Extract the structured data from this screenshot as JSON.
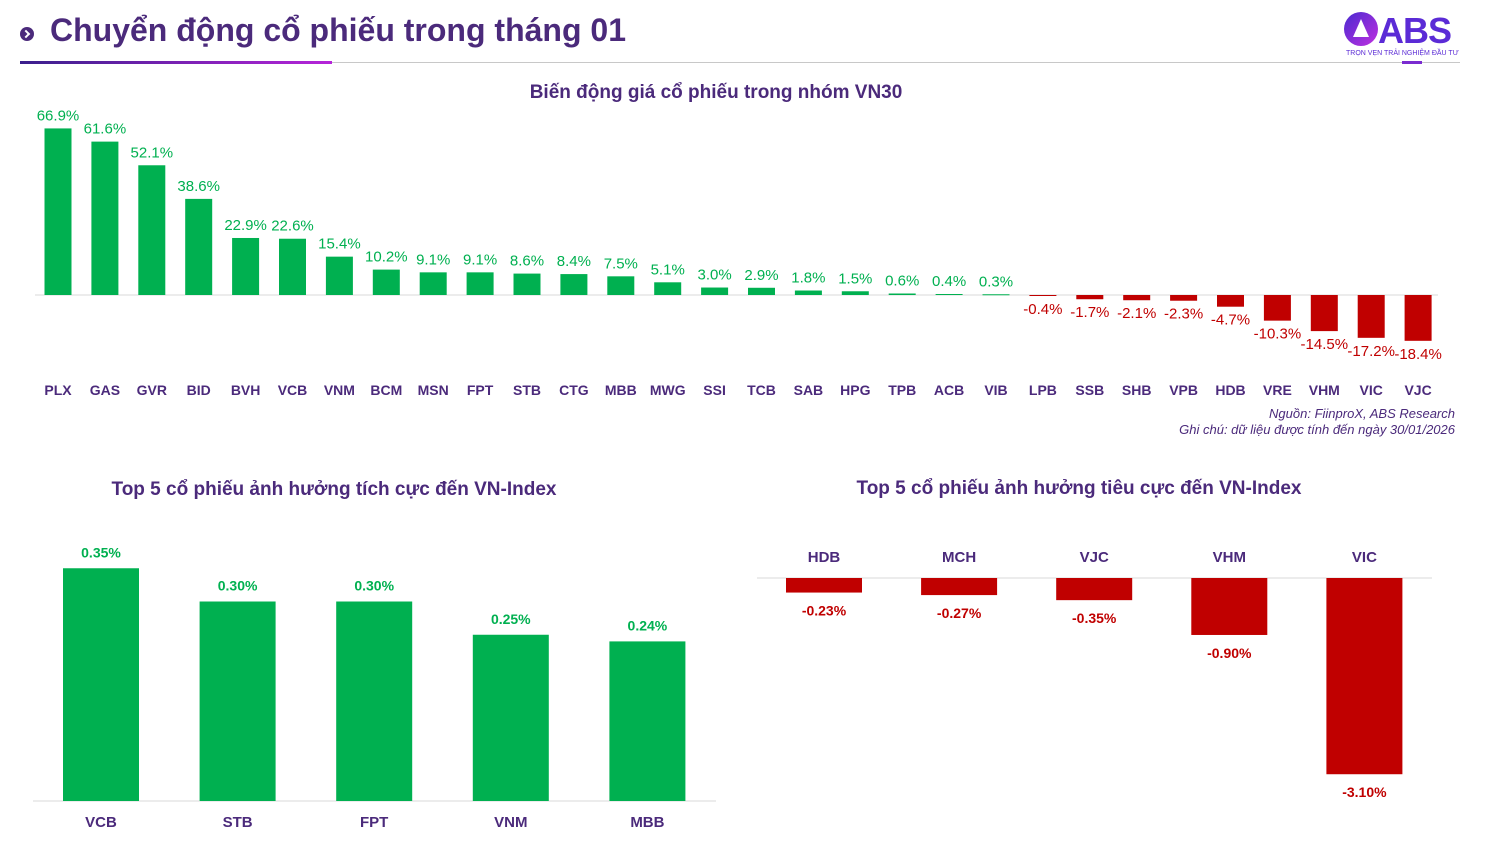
{
  "header": {
    "title": "Chuyển động cổ phiếu trong tháng 01",
    "logo_text": "ABS",
    "logo_tagline": "TRỌN VẸN TRẢI NGHIỆM ĐẦU TƯ"
  },
  "colors": {
    "positive": "#00b050",
    "negative": "#c00000",
    "title": "#4b2a7b",
    "axis_label": "#4b2a7b"
  },
  "notes": {
    "source": "Nguồn: FiinproX, ABS Research",
    "note": "Ghi chú: dữ liệu được tính đến ngày 30/01/2026"
  },
  "chart_data": [
    {
      "type": "bar",
      "title": "Biến động giá cổ phiếu trong nhóm VN30",
      "categories": [
        "PLX",
        "GAS",
        "GVR",
        "BID",
        "BVH",
        "VCB",
        "VNM",
        "BCM",
        "MSN",
        "FPT",
        "STB",
        "CTG",
        "MBB",
        "MWG",
        "SSI",
        "TCB",
        "SAB",
        "HPG",
        "TPB",
        "ACB",
        "VIB",
        "LPB",
        "SSB",
        "SHB",
        "VPB",
        "HDB",
        "VRE",
        "VHM",
        "VIC",
        "VJC"
      ],
      "values": [
        66.9,
        61.6,
        52.1,
        38.6,
        22.9,
        22.6,
        15.4,
        10.2,
        9.1,
        9.1,
        8.6,
        8.4,
        7.5,
        5.1,
        3.0,
        2.9,
        1.8,
        1.5,
        0.6,
        0.4,
        0.3,
        -0.4,
        -1.7,
        -2.1,
        -2.3,
        -4.7,
        -10.3,
        -14.5,
        -17.2,
        -18.4
      ],
      "labels": [
        "66.9%",
        "61.6%",
        "52.1%",
        "38.6%",
        "22.9%",
        "22.6%",
        "15.4%",
        "10.2%",
        "9.1%",
        "9.1%",
        "8.6%",
        "8.4%",
        "7.5%",
        "5.1%",
        "3.0%",
        "2.9%",
        "1.8%",
        "1.5%",
        "0.6%",
        "0.4%",
        "0.3%",
        "-0.4%",
        "-1.7%",
        "-2.1%",
        "-2.3%",
        "-4.7%",
        "-10.3%",
        "-14.5%",
        "-17.2%",
        "-18.4%"
      ],
      "unit": "%",
      "grid": false
    },
    {
      "type": "bar",
      "title": "Top 5 cổ phiếu ảnh hưởng tích cực đến VN-Index",
      "categories": [
        "VCB",
        "STB",
        "FPT",
        "VNM",
        "MBB"
      ],
      "values": [
        0.35,
        0.3,
        0.3,
        0.25,
        0.24
      ],
      "labels": [
        "0.35%",
        "0.30%",
        "0.30%",
        "0.25%",
        "0.24%"
      ],
      "unit": "%",
      "grid": false
    },
    {
      "type": "bar",
      "title": "Top 5 cổ phiếu ảnh hưởng tiêu cực đến VN-Index",
      "categories": [
        "HDB",
        "MCH",
        "VJC",
        "VHM",
        "VIC"
      ],
      "values": [
        -0.23,
        -0.27,
        -0.35,
        -0.9,
        -3.1
      ],
      "labels": [
        "-0.23%",
        "-0.27%",
        "-0.35%",
        "-0.90%",
        "-3.10%"
      ],
      "unit": "%",
      "grid": false
    }
  ]
}
